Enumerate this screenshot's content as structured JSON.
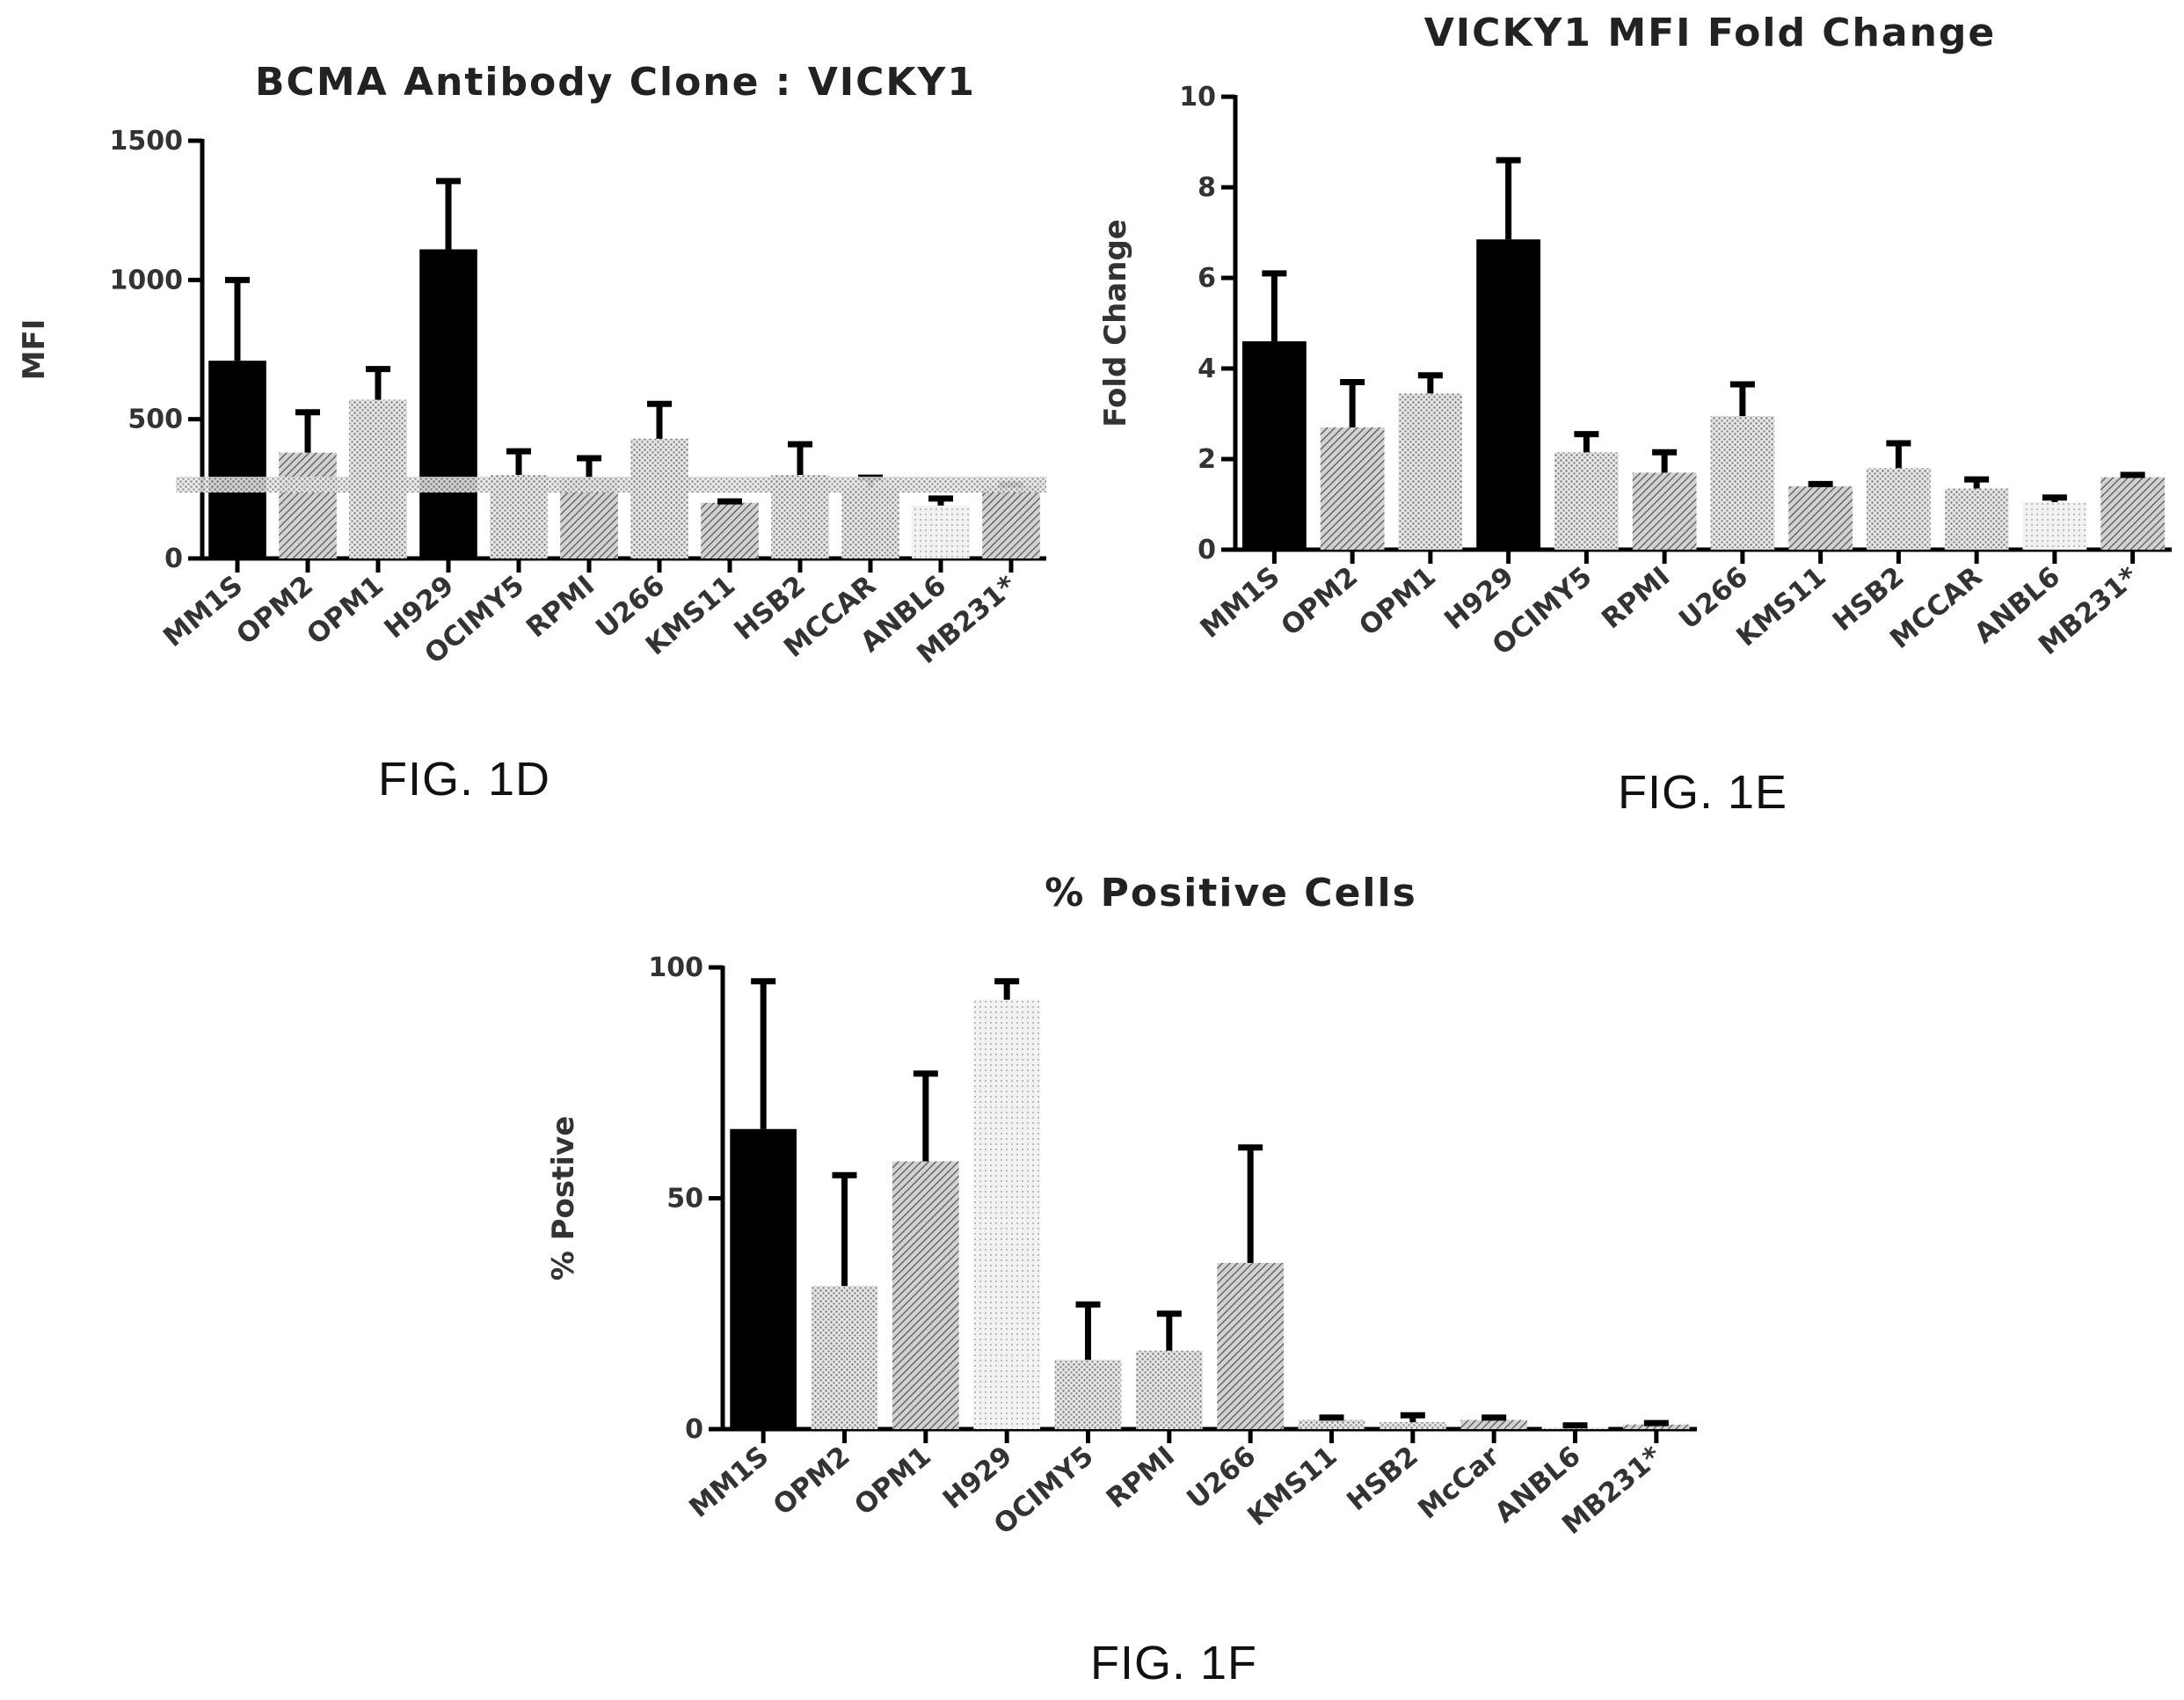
{
  "chart_data": [
    {
      "type": "bar",
      "title": "BCMA Antibody Clone : VICKY1",
      "xlabel": "",
      "ylabel": "MFI",
      "ylim": [
        0,
        1500
      ],
      "yticks": [
        "0",
        "500",
        "1000",
        "1500"
      ],
      "categories": [
        "MM1S",
        "OPM2",
        "OPM1",
        "H929",
        "OCIMY5",
        "RPMI",
        "U266",
        "KMS11",
        "HSB2",
        "MCCAR",
        "ANBL6",
        "MB231*"
      ],
      "values": [
        710,
        380,
        570,
        1110,
        300,
        290,
        430,
        200,
        300,
        255,
        190,
        260
      ],
      "errors": [
        290,
        145,
        110,
        245,
        85,
        70,
        125,
        5,
        110,
        35,
        25,
        5
      ],
      "bar_fills": [
        "black",
        "hatch-dark",
        "dots-light",
        "black",
        "dots-light",
        "hatch-dark",
        "dots-light",
        "hatch-dark",
        "dots-light",
        "dots-light",
        "dots-lighter",
        "hatch-dark"
      ],
      "reference_line": 265,
      "caption": "FIG. 1D"
    },
    {
      "type": "bar",
      "title": "VICKY1 MFI Fold Change",
      "xlabel": "",
      "ylabel": "Fold Change",
      "ylim": [
        0,
        10
      ],
      "yticks": [
        "0",
        "2",
        "4",
        "6",
        "8",
        "10"
      ],
      "categories": [
        "MM1S",
        "OPM2",
        "OPM1",
        "H929",
        "OCIMY5",
        "RPMI",
        "U266",
        "KMS11",
        "HSB2",
        "MCCAR",
        "ANBL6",
        "MB231*"
      ],
      "values": [
        4.6,
        2.7,
        3.45,
        6.85,
        2.15,
        1.7,
        2.95,
        1.4,
        1.8,
        1.35,
        1.05,
        1.6
      ],
      "errors": [
        1.5,
        1.0,
        0.4,
        1.75,
        0.4,
        0.45,
        0.7,
        0.05,
        0.55,
        0.2,
        0.1,
        0.05
      ],
      "bar_fills": [
        "black",
        "hatch-dark",
        "dots-light",
        "black",
        "dots-light",
        "hatch-dark",
        "dots-light",
        "hatch-dark",
        "dots-light",
        "dots-light",
        "dots-lighter",
        "hatch-dark"
      ],
      "caption": "FIG. 1E"
    },
    {
      "type": "bar",
      "title": "% Positive Cells",
      "xlabel": "",
      "ylabel": "% Postive",
      "ylim": [
        0,
        100
      ],
      "yticks": [
        "0",
        "50",
        "100"
      ],
      "categories": [
        "MM1S",
        "OPM2",
        "OPM1",
        "H929",
        "OCIMY5",
        "RPMI",
        "U266",
        "KMS11",
        "HSB2",
        "McCar",
        "ANBL6",
        "MB231*"
      ],
      "values": [
        65,
        31,
        58,
        93,
        15,
        17,
        36,
        2,
        1.5,
        2,
        0.5,
        1
      ],
      "errors": [
        32,
        24,
        19,
        4,
        12,
        8,
        25,
        0.5,
        1.5,
        0.5,
        0.3,
        0.3
      ],
      "bar_fills": [
        "black",
        "dots-light",
        "hatch-dark",
        "dots-lighter",
        "dots-light",
        "dots-light",
        "hatch-dark",
        "dots-light",
        "dots-light",
        "hatch-dark",
        "dots-lighter",
        "hatch-dark"
      ],
      "caption": "FIG. 1F"
    }
  ]
}
